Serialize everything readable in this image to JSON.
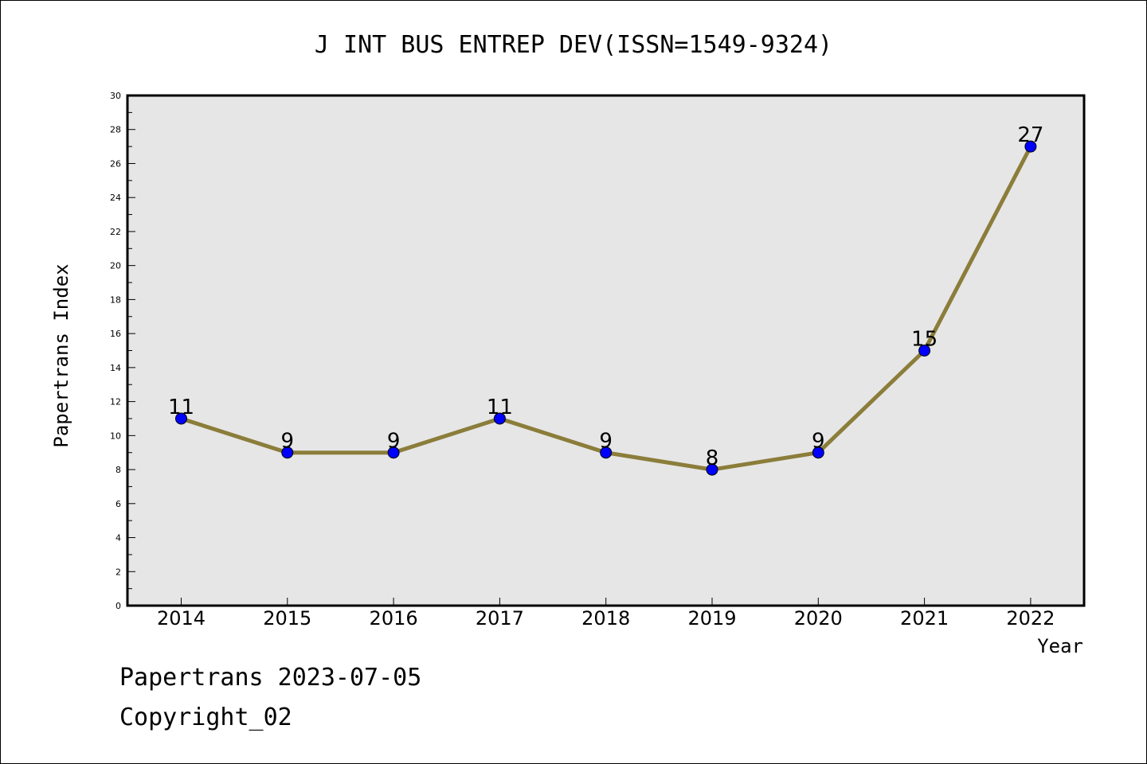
{
  "chart_data": {
    "type": "line",
    "title": "J INT BUS ENTREP DEV(ISSN=1549-9324)",
    "xlabel": "Year",
    "ylabel": "Papertrans Index",
    "categories": [
      "2014",
      "2015",
      "2016",
      "2017",
      "2018",
      "2019",
      "2020",
      "2021",
      "2022"
    ],
    "series": [
      {
        "values": [
          11,
          9,
          9,
          11,
          9,
          8,
          9,
          15,
          27
        ]
      }
    ],
    "ylim": [
      0,
      30
    ],
    "yticks": [
      0,
      2,
      4,
      6,
      8,
      10,
      12,
      14,
      16,
      18,
      20,
      22,
      24,
      26,
      28,
      30
    ],
    "grid": false,
    "data_labels": true,
    "colors": {
      "plot_background": "#e6e6e6",
      "line": "#8b7d3a",
      "marker": "#0000ff",
      "marker_edge": "#000000"
    }
  },
  "footer": {
    "line1": "Papertrans 2023-07-05",
    "line2": "Copyright_02"
  }
}
